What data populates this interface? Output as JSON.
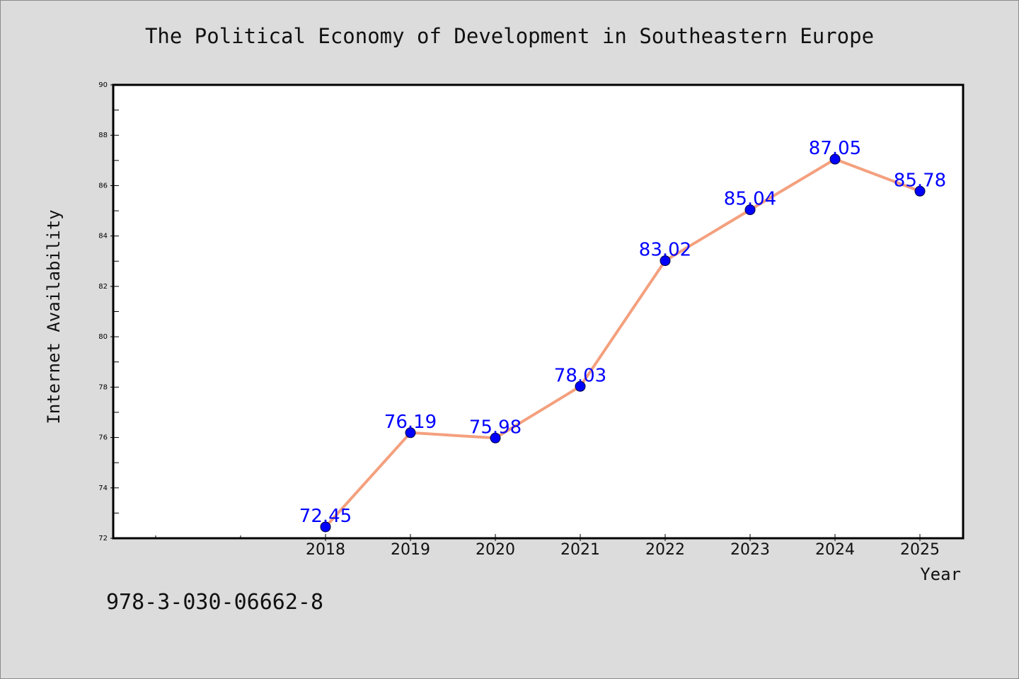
{
  "title": "The Political Economy of Development in Southeastern Europe",
  "footer_text": "978-3-030-06662-8",
  "chart_data": {
    "type": "line",
    "title": "The Political Economy of Development in Southeastern Europe",
    "xlabel": "Year",
    "ylabel": "Internet Availability",
    "x": [
      2018,
      2019,
      2020,
      2021,
      2022,
      2023,
      2024,
      2025
    ],
    "x_tick_labels": [
      "2018",
      "2019",
      "2020",
      "2021",
      "2022",
      "2023",
      "2024",
      "2025"
    ],
    "xlim": [
      2015.5,
      2025.5
    ],
    "ylim": [
      72,
      90
    ],
    "y_ticks": [
      72,
      74,
      76,
      78,
      80,
      82,
      84,
      86,
      88,
      90
    ],
    "y_tick_labels": [
      "72",
      "74",
      "76",
      "78",
      "80",
      "82",
      "84",
      "86",
      "88",
      "90"
    ],
    "series": [
      {
        "values": [
          72.45,
          76.19,
          75.98,
          78.03,
          83.02,
          85.04,
          87.05,
          85.78
        ],
        "labels": [
          "72.45",
          "76.19",
          "75.98",
          "78.03",
          "83.02",
          "85.04",
          "87.05",
          "85.78"
        ]
      }
    ],
    "grid": false,
    "colors": {
      "line": "#f4a07e",
      "marker": "#0000ff",
      "data_label": "#0000ff",
      "plot_bg": "#ffffff",
      "figure_bg": "#dcdcdc"
    }
  }
}
